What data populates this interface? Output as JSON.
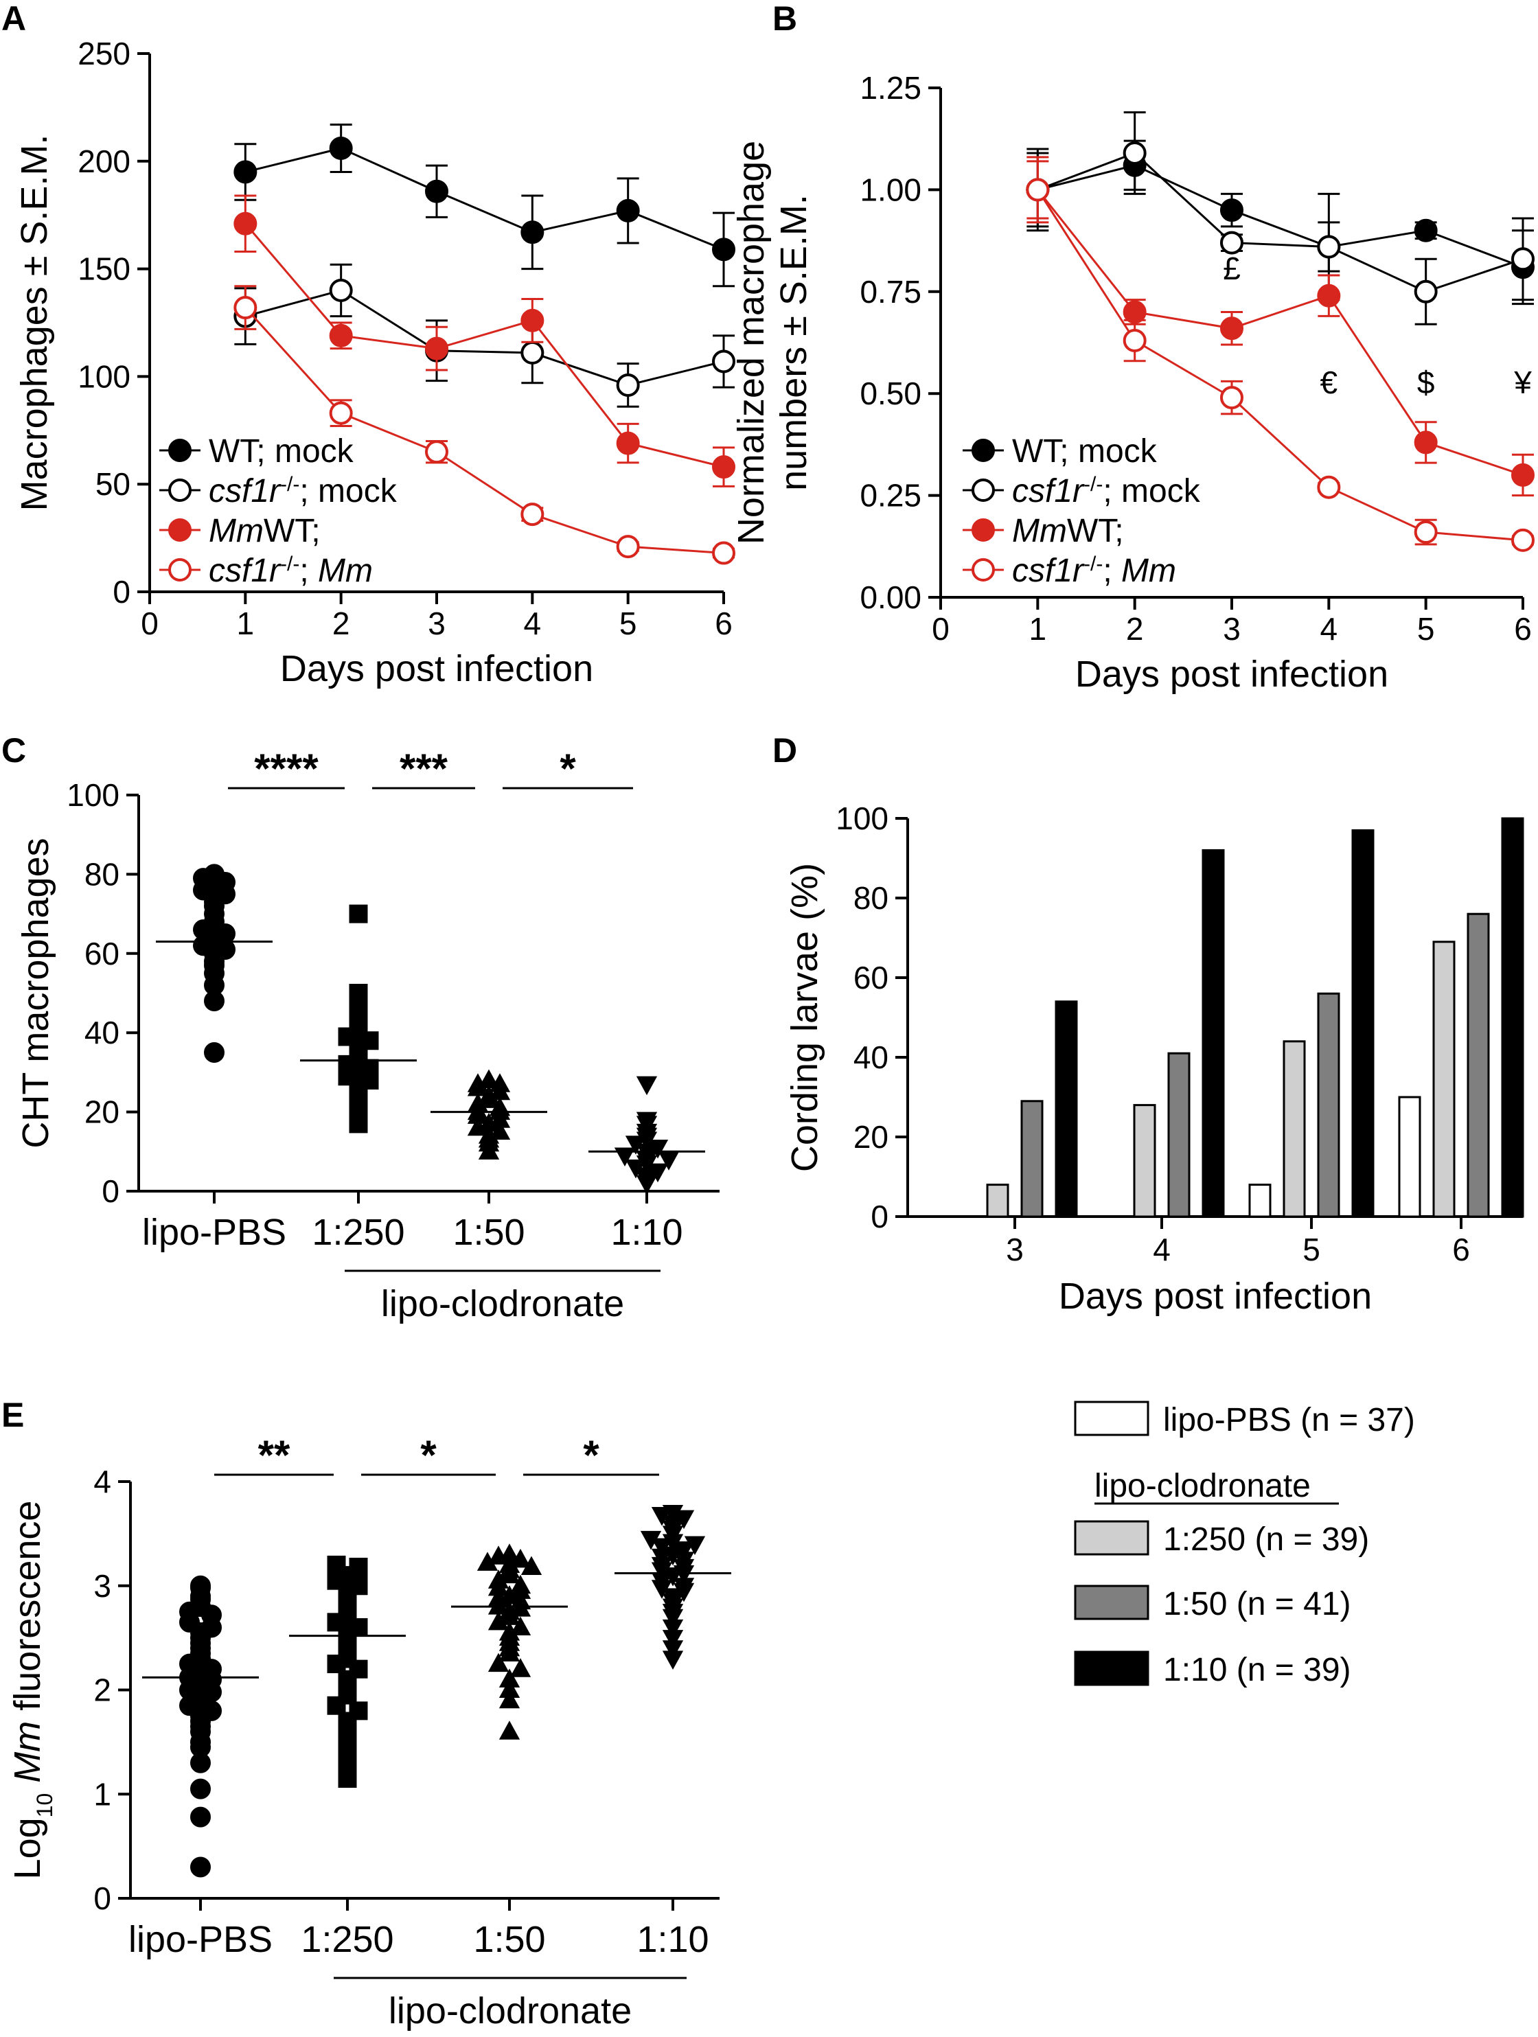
{
  "colors": {
    "black": "#000000",
    "red": "#d7261e",
    "light_gray": "#cfcfcf",
    "mid_gray": "#7f7f7f",
    "white": "#ffffff"
  },
  "chart_data": [
    {
      "id": "A",
      "panel_label": "A",
      "type": "line",
      "xlabel": "Days post infection",
      "ylabel": "Macrophages ± S.E.M.",
      "xlim": [
        0,
        6
      ],
      "ylim": [
        0,
        250
      ],
      "xticks": [
        0,
        1,
        2,
        3,
        4,
        5,
        6
      ],
      "yticks": [
        0,
        50,
        100,
        150,
        200,
        250
      ],
      "legend_position": "bottom-left",
      "series": [
        {
          "name": "WT; mock",
          "name_main": "WT; mock",
          "name_italic": "",
          "color": "#000000",
          "fill": "filled",
          "x": [
            1,
            2,
            3,
            4,
            5,
            6
          ],
          "y": [
            195,
            206,
            186,
            167,
            177,
            159
          ],
          "err": [
            13,
            11,
            12,
            17,
            15,
            17
          ]
        },
        {
          "name": "csf1r-/-; mock",
          "name_main": "; mock",
          "name_italic": "csf1r",
          "name_sup": "-/-",
          "color": "#000000",
          "fill": "open",
          "x": [
            1,
            2,
            3,
            4,
            5,
            6
          ],
          "y": [
            128,
            140,
            112,
            111,
            96,
            107
          ],
          "err": [
            13,
            12,
            14,
            14,
            10,
            12
          ]
        },
        {
          "name": "WT; Mm",
          "name_main": "WT; ",
          "name_italic": "Mm",
          "color": "#d7261e",
          "fill": "filled",
          "x": [
            1,
            2,
            3,
            4,
            5,
            6
          ],
          "y": [
            171,
            119,
            113,
            126,
            69,
            58
          ],
          "err": [
            13,
            6,
            10,
            10,
            9,
            9
          ]
        },
        {
          "name": "csf1r-/-; Mm",
          "name_main": "; ",
          "name_italic": "csf1r",
          "name_sup": "-/-",
          "name_italic2": "Mm",
          "color": "#d7261e",
          "fill": "open",
          "x": [
            1,
            2,
            3,
            4,
            5,
            6
          ],
          "y": [
            132,
            83,
            65,
            36,
            21,
            18
          ],
          "err": [
            10,
            6,
            5,
            3,
            2,
            2
          ]
        }
      ]
    },
    {
      "id": "B",
      "panel_label": "B",
      "type": "line",
      "xlabel": "Days post infection",
      "ylabel_line1": "Normalized macrophage",
      "ylabel_line2": "numbers ± S.E.M.",
      "xlim": [
        0,
        6
      ],
      "ylim": [
        0,
        1.25
      ],
      "xticks": [
        0,
        1,
        2,
        3,
        4,
        5,
        6
      ],
      "yticks": [
        "0.00",
        "0.25",
        "0.50",
        "0.75",
        "1.00",
        "1.25"
      ],
      "legend_position": "bottom-left",
      "annotations": [
        {
          "text": "£",
          "x": 3,
          "y": 0.78
        },
        {
          "text": "€",
          "x": 4,
          "y": 0.5
        },
        {
          "text": "$",
          "x": 5,
          "y": 0.5
        },
        {
          "text": "¥",
          "x": 6,
          "y": 0.5
        }
      ],
      "series": [
        {
          "name": "WT; mock",
          "color": "#000000",
          "fill": "filled",
          "x": [
            1,
            2,
            3,
            4,
            5,
            6
          ],
          "y": [
            1.0,
            1.06,
            0.95,
            0.86,
            0.9,
            0.81
          ],
          "err": [
            0.09,
            0.06,
            0.04,
            0.06,
            0.02,
            0.09
          ]
        },
        {
          "name": "csf1r-/-; mock",
          "color": "#000000",
          "fill": "open",
          "x": [
            1,
            2,
            3,
            4,
            5,
            6
          ],
          "y": [
            1.0,
            1.09,
            0.87,
            0.86,
            0.75,
            0.83
          ],
          "err": [
            0.1,
            0.1,
            0.02,
            0.13,
            0.08,
            0.1
          ]
        },
        {
          "name": "WT; Mm",
          "color": "#d7261e",
          "fill": "filled",
          "x": [
            1,
            2,
            3,
            4,
            5,
            6
          ],
          "y": [
            1.0,
            0.7,
            0.66,
            0.74,
            0.38,
            0.3
          ],
          "err": [
            0.08,
            0.03,
            0.04,
            0.05,
            0.05,
            0.05
          ]
        },
        {
          "name": "csf1r-/-; Mm",
          "color": "#d7261e",
          "fill": "open",
          "x": [
            1,
            2,
            3,
            4,
            5,
            6
          ],
          "y": [
            1.0,
            0.63,
            0.49,
            0.27,
            0.16,
            0.14
          ],
          "err": [
            0.07,
            0.05,
            0.04,
            0.01,
            0.03,
            0.01
          ]
        }
      ]
    },
    {
      "id": "C",
      "panel_label": "C",
      "type": "scatter",
      "ylabel": "CHT macrophages",
      "ylim": [
        0,
        100
      ],
      "yticks": [
        0,
        20,
        40,
        60,
        80,
        100
      ],
      "categories": [
        "lipo-PBS",
        "1:250",
        "1:50",
        "1:10"
      ],
      "group_label": "lipo-clodronate",
      "significance": [
        "****",
        "***",
        "*"
      ],
      "groups": [
        {
          "name": "lipo-PBS",
          "marker": "circle",
          "mean": 63,
          "values": [
            80,
            79,
            78,
            77,
            76,
            75,
            73,
            72,
            70,
            68,
            66,
            65,
            63,
            62,
            61,
            60,
            58,
            57,
            55,
            52,
            48,
            35
          ]
        },
        {
          "name": "1:250",
          "marker": "square",
          "mean": 33,
          "values": [
            70,
            50,
            46,
            43,
            40,
            39,
            38,
            37,
            35,
            34,
            33,
            32,
            31,
            30,
            29,
            28,
            27,
            25,
            23,
            20,
            17
          ]
        },
        {
          "name": "1:50",
          "marker": "triangle-up",
          "mean": 20,
          "values": [
            28,
            27,
            27,
            26,
            25,
            24,
            23,
            22,
            21,
            20,
            20,
            19,
            18,
            17,
            16,
            15,
            14,
            13,
            12,
            10
          ]
        },
        {
          "name": "1:10",
          "marker": "triangle-down",
          "mean": 10,
          "values": [
            27,
            18,
            17,
            15,
            14,
            13,
            12,
            11,
            10,
            9,
            8,
            8,
            7,
            6,
            5,
            4,
            3,
            2
          ]
        }
      ]
    },
    {
      "id": "D",
      "panel_label": "D",
      "type": "bar",
      "xlabel": "Days post infection",
      "ylabel": "Cording larvae (%)",
      "ylim": [
        0,
        100
      ],
      "yticks": [
        0,
        20,
        40,
        60,
        80,
        100
      ],
      "categories": [
        "3",
        "4",
        "5",
        "6"
      ],
      "series": [
        {
          "name": "lipo-PBS (n = 37)",
          "color": "#ffffff",
          "values": [
            0,
            0,
            8,
            30
          ]
        },
        {
          "name": "1:250 (n = 39)",
          "color": "#cfcfcf",
          "values": [
            8,
            28,
            44,
            69
          ]
        },
        {
          "name": "1:50 (n = 41)",
          "color": "#7f7f7f",
          "values": [
            29,
            41,
            56,
            76
          ]
        },
        {
          "name": "1:10 (n = 39)",
          "color": "#000000",
          "values": [
            54,
            92,
            97,
            100
          ]
        }
      ],
      "legend_heading": "lipo-clodronate"
    },
    {
      "id": "E",
      "panel_label": "E",
      "type": "scatter",
      "ylabel_prefix": "Log",
      "ylabel_sub": "10",
      "ylabel_italic": "Mm",
      "ylabel_suffix": " fluorescence",
      "ylim": [
        0,
        4
      ],
      "yticks": [
        0,
        1,
        2,
        3,
        4
      ],
      "categories": [
        "lipo-PBS",
        "1:250",
        "1:50",
        "1:10"
      ],
      "group_label": "lipo-clodronate",
      "significance": [
        "**",
        "*",
        "*"
      ],
      "groups": [
        {
          "name": "lipo-PBS",
          "marker": "circle",
          "mean": 2.12,
          "values": [
            3.0,
            2.98,
            2.9,
            2.87,
            2.8,
            2.75,
            2.72,
            2.65,
            2.6,
            2.55,
            2.5,
            2.45,
            2.4,
            2.35,
            2.3,
            2.25,
            2.2,
            2.15,
            2.12,
            2.1,
            2.05,
            2.0,
            1.98,
            1.9,
            1.85,
            1.8,
            1.75,
            1.7,
            1.65,
            1.6,
            1.5,
            1.45,
            1.3,
            1.05,
            0.78,
            0.3
          ]
        },
        {
          "name": "1:250",
          "marker": "square",
          "mean": 2.52,
          "values": [
            3.2,
            3.18,
            3.15,
            3.12,
            3.1,
            3.05,
            3.0,
            2.95,
            2.9,
            2.85,
            2.8,
            2.75,
            2.7,
            2.65,
            2.6,
            2.55,
            2.5,
            2.45,
            2.4,
            2.35,
            2.3,
            2.25,
            2.2,
            2.1,
            2.0,
            1.95,
            1.85,
            1.8,
            1.7,
            1.6,
            1.5,
            1.45,
            1.35,
            1.25,
            1.2,
            1.15
          ]
        },
        {
          "name": "1:50",
          "marker": "triangle-up",
          "mean": 2.8,
          "values": [
            3.3,
            3.28,
            3.25,
            3.22,
            3.2,
            3.18,
            3.15,
            3.1,
            3.05,
            3.0,
            2.98,
            2.95,
            2.9,
            2.88,
            2.85,
            2.8,
            2.78,
            2.75,
            2.7,
            2.65,
            2.6,
            2.55,
            2.5,
            2.45,
            2.4,
            2.35,
            2.25,
            2.2,
            2.1,
            2.0,
            1.9,
            1.6
          ]
        },
        {
          "name": "1:10",
          "marker": "triangle-down",
          "mean": 3.12,
          "values": [
            3.7,
            3.68,
            3.65,
            3.6,
            3.55,
            3.5,
            3.45,
            3.42,
            3.4,
            3.38,
            3.35,
            3.3,
            3.28,
            3.25,
            3.2,
            3.18,
            3.15,
            3.12,
            3.1,
            3.05,
            3.0,
            2.98,
            2.95,
            2.9,
            2.85,
            2.8,
            2.75,
            2.7,
            2.6,
            2.5,
            2.4,
            2.3
          ]
        }
      ]
    }
  ]
}
